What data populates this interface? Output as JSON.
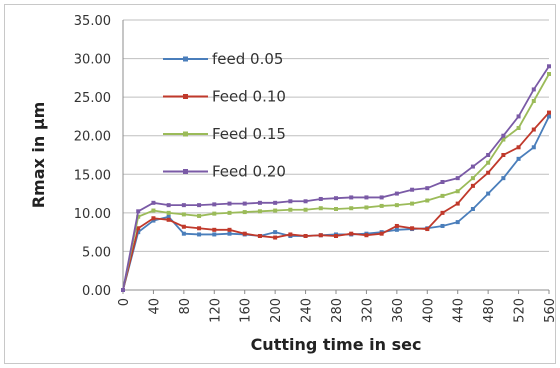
{
  "chart_data": {
    "type": "line",
    "xlabel": "Cutting time in sec",
    "ylabel": "Rmax in µm",
    "xlim": [
      0,
      560
    ],
    "ylim": [
      0,
      35
    ],
    "x_ticks": [
      0,
      40,
      80,
      120,
      160,
      200,
      240,
      280,
      320,
      360,
      400,
      440,
      480,
      520,
      560
    ],
    "y_ticks": [
      "0.00",
      "5.00",
      "10.00",
      "15.00",
      "20.00",
      "25.00",
      "30.00",
      "35.00"
    ],
    "grid": "horizontal",
    "legend_position": "inside-top-left",
    "x": [
      0,
      20,
      40,
      60,
      80,
      100,
      120,
      140,
      160,
      180,
      200,
      220,
      240,
      260,
      280,
      300,
      320,
      340,
      360,
      380,
      400,
      420,
      440,
      460,
      480,
      500,
      520,
      540,
      560
    ],
    "series": [
      {
        "name": "feed 0.05",
        "color": "#4a7ebb",
        "values": [
          0,
          7.5,
          9.0,
          9.5,
          7.3,
          7.2,
          7.2,
          7.3,
          7.2,
          7.0,
          7.5,
          7.0,
          7.0,
          7.1,
          7.2,
          7.2,
          7.3,
          7.5,
          7.8,
          7.9,
          8.0,
          8.3,
          8.8,
          10.5,
          12.5,
          14.5,
          17.0,
          18.5,
          22.5
        ]
      },
      {
        "name": "Feed 0.10",
        "color": "#c0392b",
        "values": [
          0,
          8.0,
          9.3,
          9.1,
          8.2,
          8.0,
          7.8,
          7.8,
          7.3,
          7.0,
          6.8,
          7.2,
          7.0,
          7.1,
          7.0,
          7.3,
          7.1,
          7.3,
          8.3,
          8.0,
          7.9,
          10.0,
          11.2,
          13.5,
          15.2,
          17.5,
          18.5,
          20.8,
          23.0
        ]
      },
      {
        "name": "Feed 0.15",
        "color": "#9bbb59",
        "values": [
          0,
          9.5,
          10.3,
          10.0,
          9.8,
          9.6,
          9.9,
          10.0,
          10.1,
          10.2,
          10.3,
          10.4,
          10.4,
          10.6,
          10.5,
          10.6,
          10.7,
          10.9,
          11.0,
          11.2,
          11.6,
          12.2,
          12.8,
          14.5,
          16.5,
          19.5,
          21.0,
          24.5,
          28.0
        ]
      },
      {
        "name": "Feed 0.20",
        "color": "#7a5aa6",
        "values": [
          0,
          10.2,
          11.3,
          11.0,
          11.0,
          11.0,
          11.1,
          11.2,
          11.2,
          11.3,
          11.3,
          11.5,
          11.5,
          11.8,
          11.9,
          12.0,
          12.0,
          12.0,
          12.5,
          13.0,
          13.2,
          14.0,
          14.5,
          16.0,
          17.5,
          20.0,
          22.5,
          26.0,
          29.0
        ]
      }
    ]
  }
}
